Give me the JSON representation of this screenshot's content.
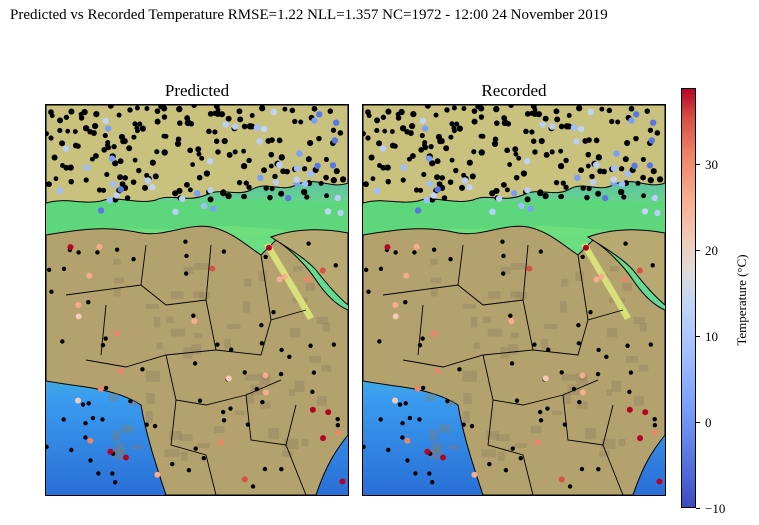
{
  "title": "Predicted vs Recorded Temperature RMSE=1.22 NLL=1.357 NC=1972 - 12:00 24 November 2019",
  "panels": [
    {
      "title": "Predicted"
    },
    {
      "title": "Recorded"
    }
  ],
  "colorbar": {
    "label": "Temperature (°C)",
    "vmin": -10,
    "vmax": 39,
    "ticks": [
      "−10",
      "0",
      "10",
      "20",
      "30"
    ],
    "colormap": "coolwarm"
  },
  "colors": {
    "sea_shallow": "#6fe07a",
    "sea_deep": "#2a6fd6",
    "desert": "#b4a26e",
    "highland": "#8c7a62",
    "unobserved_station": "#000000"
  }
}
